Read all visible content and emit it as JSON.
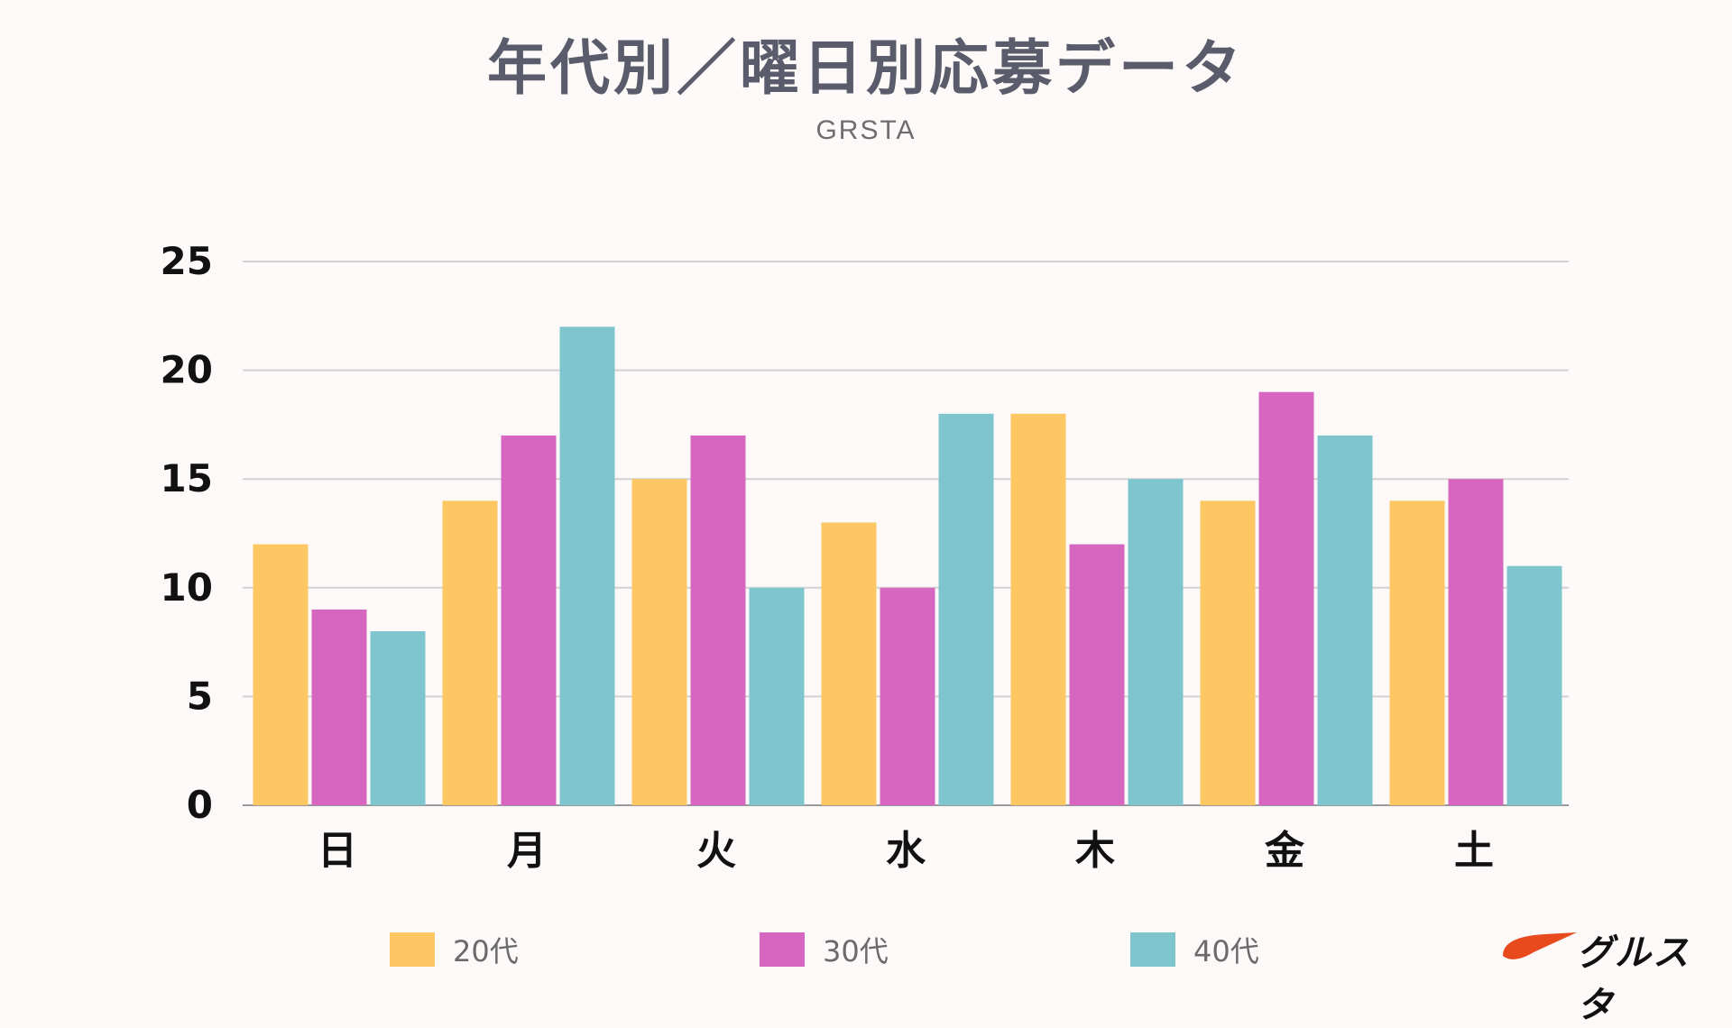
{
  "chart_data": {
    "type": "bar",
    "title": "年代別／曜日別応募データ",
    "subtitle": "GRSTA",
    "categories": [
      "日",
      "月",
      "火",
      "水",
      "木",
      "金",
      "土"
    ],
    "series": [
      {
        "name": "20代",
        "color": "#fdc864",
        "values": [
          12,
          14,
          15,
          13,
          18,
          14,
          14
        ]
      },
      {
        "name": "30代",
        "color": "#d666bf",
        "values": [
          9,
          17,
          17,
          10,
          12,
          19,
          15
        ]
      },
      {
        "name": "40代",
        "color": "#7ec5ce",
        "values": [
          8,
          22,
          10,
          18,
          15,
          17,
          11
        ]
      }
    ],
    "ylim": [
      0,
      25
    ],
    "yticks": [
      0,
      5,
      10,
      15,
      20,
      25
    ],
    "grid": true,
    "legend": "bottom"
  },
  "logo": {
    "text": "グルスタ",
    "accent": "#e8491d"
  }
}
